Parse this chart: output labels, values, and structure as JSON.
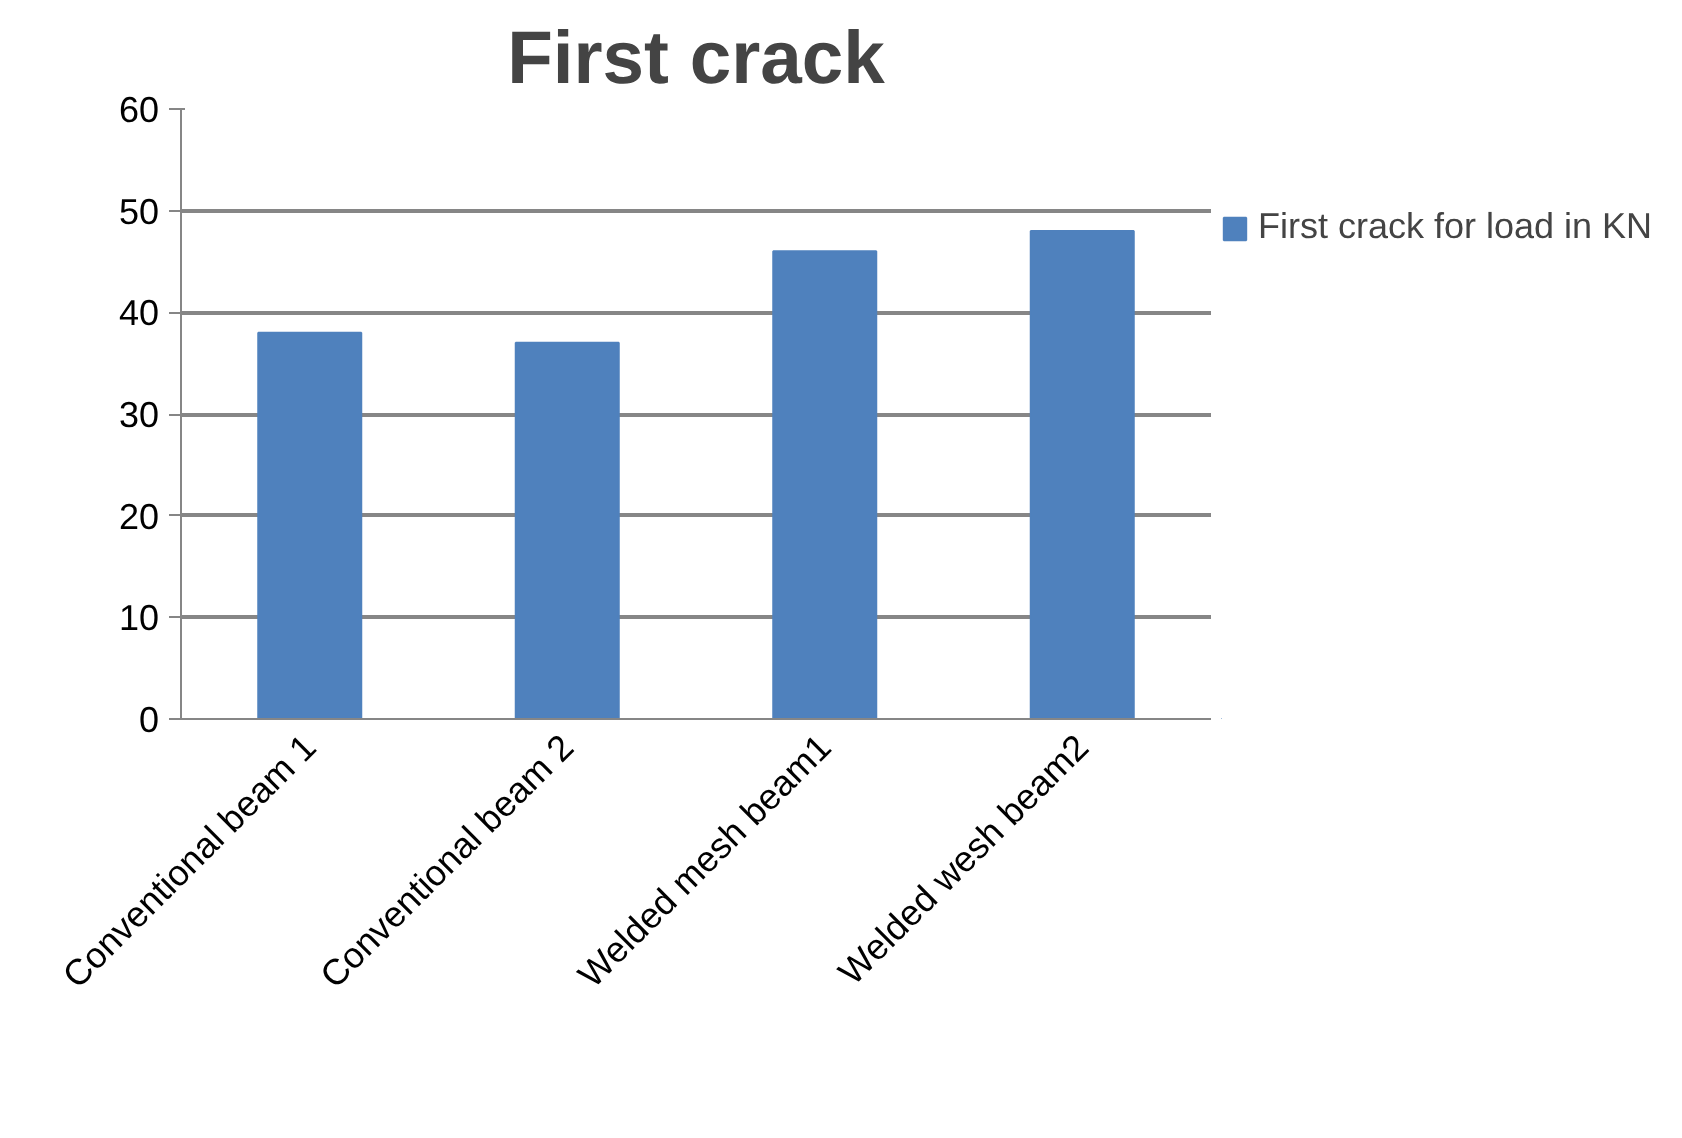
{
  "chart_data": {
    "type": "bar",
    "title": "First crack",
    "categories": [
      "Conventional beam 1",
      "Conventional beam 2",
      "Welded mesh beam1",
      "Welded wesh beam2"
    ],
    "series": [
      {
        "name": "First crack for load in KN",
        "color": "#4f81bd",
        "values": [
          38,
          37,
          46,
          48
        ]
      }
    ],
    "ylim": [
      0,
      60
    ],
    "yticks": [
      0,
      10,
      20,
      30,
      40,
      50,
      60
    ],
    "grid": "y",
    "legend": "right"
  }
}
